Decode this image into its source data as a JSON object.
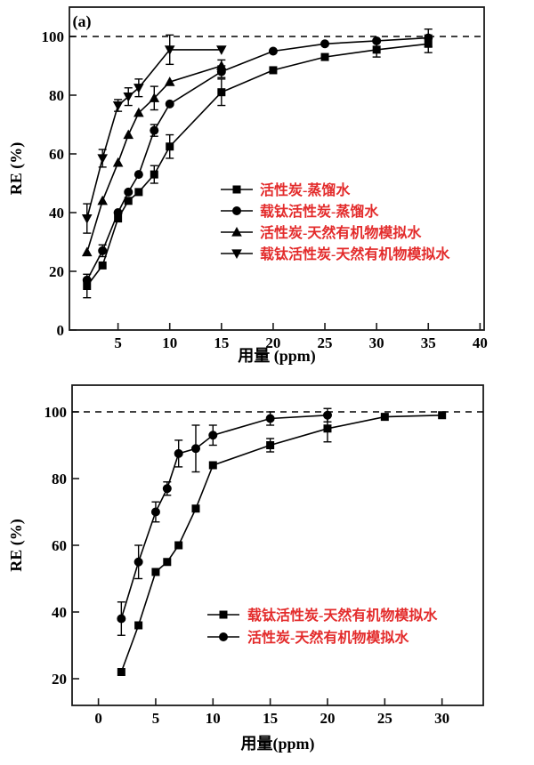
{
  "colors": {
    "line": "#000000",
    "marker": "#000000",
    "axis": "#1a1a1a",
    "legend_text": "#e32b2b",
    "background": "#ffffff",
    "reference_line": "#000000"
  },
  "chart_data": [
    {
      "type": "line",
      "panel_label": "(a)",
      "xlabel": "用量 (ppm)",
      "ylabel": "RE (%)",
      "xlim": [
        0.3,
        40.4
      ],
      "ylim": [
        0,
        110
      ],
      "xticks": [
        5,
        10,
        15,
        20,
        25,
        30,
        35,
        40
      ],
      "yticks": [
        0,
        20,
        40,
        60,
        80,
        100
      ],
      "grid": false,
      "ref_line_y": 100,
      "legend_position": "center-right-inside",
      "series": [
        {
          "name": "活性炭-蒸馏水",
          "marker": "square",
          "x": [
            2,
            3.5,
            5,
            6,
            7,
            8.5,
            10,
            15,
            20,
            25,
            30,
            35
          ],
          "y": [
            15,
            22,
            38,
            44,
            47,
            53,
            62.5,
            81,
            88.5,
            93,
            95.5,
            97.5
          ],
          "err": [
            4,
            0,
            0,
            0,
            0,
            3,
            4,
            4.5,
            0,
            0,
            2.5,
            3
          ]
        },
        {
          "name": "载钛活性炭-蒸馏水",
          "marker": "circle",
          "x": [
            2,
            3.5,
            5,
            6,
            7,
            8.5,
            10,
            15,
            20,
            25,
            30,
            35
          ],
          "y": [
            17,
            27,
            40,
            47,
            53,
            68,
            77,
            88,
            95,
            97.5,
            98.5,
            99.5
          ],
          "err": [
            0,
            2,
            0,
            0,
            0,
            2,
            0,
            2,
            0,
            0,
            0,
            3
          ]
        },
        {
          "name": "活性炭-天然有机物模拟水",
          "marker": "triangle-up",
          "x": [
            2,
            3.5,
            5,
            6,
            7,
            8.5,
            10,
            15
          ],
          "y": [
            26.5,
            44,
            57,
            66.5,
            74,
            79,
            84.5,
            90
          ],
          "err": [
            0,
            0,
            0,
            0,
            0,
            4,
            0,
            2
          ]
        },
        {
          "name": "载钛活性炭-天然有机物模拟水",
          "marker": "triangle-down",
          "x": [
            2,
            3.5,
            5,
            6,
            7,
            10,
            15
          ],
          "y": [
            38,
            58.5,
            76.5,
            79.5,
            82.5,
            95.5,
            95.5
          ],
          "err": [
            5,
            3,
            2,
            3,
            3,
            5,
            0
          ]
        }
      ]
    },
    {
      "type": "line",
      "panel_label": "",
      "xlabel": "用量(ppm)",
      "ylabel": "RE (%)",
      "xlim": [
        -2.3,
        33.6
      ],
      "ylim": [
        12,
        108
      ],
      "xticks": [
        0,
        5,
        10,
        15,
        20,
        25,
        30
      ],
      "yticks": [
        20,
        40,
        60,
        80,
        100
      ],
      "grid": false,
      "ref_line_y": 100,
      "legend_position": "center-right-inside",
      "series": [
        {
          "name": "载钛活性炭-天然有机物模拟水",
          "marker": "square",
          "x": [
            2,
            3.5,
            5,
            6,
            7,
            8.5,
            10,
            15,
            20,
            25,
            30
          ],
          "y": [
            22,
            36,
            52,
            55,
            60,
            71,
            84,
            90,
            95,
            98.5,
            99
          ],
          "err": [
            0,
            0,
            0,
            0,
            0,
            0,
            0,
            2,
            4,
            0,
            0
          ]
        },
        {
          "name": "活性炭-天然有机物模拟水",
          "marker": "circle",
          "x": [
            2,
            3.5,
            5,
            6,
            7,
            8.5,
            10,
            15,
            20
          ],
          "y": [
            38,
            55,
            70,
            77,
            87.5,
            89,
            93,
            98,
            99
          ],
          "err": [
            5,
            5,
            3,
            2,
            4,
            7,
            3,
            2,
            2
          ]
        }
      ]
    }
  ]
}
